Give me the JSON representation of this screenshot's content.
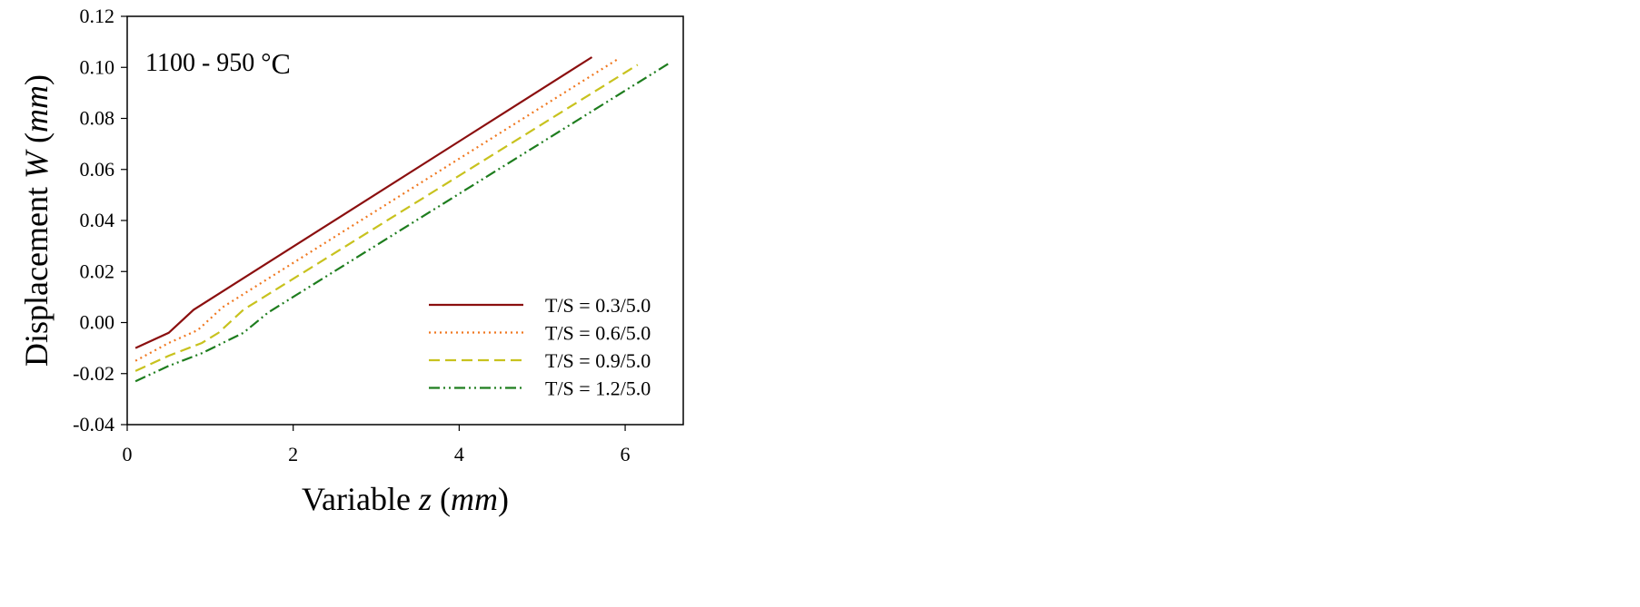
{
  "chart_data": {
    "type": "line",
    "annotation": {
      "main": "1100 - 950 °",
      "unit": "C"
    },
    "xlabel": {
      "main": "Variable ",
      "var": "z",
      "open": " (",
      "unit": "mm",
      "close": ")"
    },
    "ylabel": {
      "main": "Displacement ",
      "var": "W",
      "open": " (",
      "unit": "mm",
      "close": ")"
    },
    "xlim": [
      0,
      6.7
    ],
    "ylim": [
      -0.04,
      0.12
    ],
    "xticks": [
      0,
      2,
      4,
      6
    ],
    "xtick_labels": [
      "0",
      "2",
      "4",
      "6"
    ],
    "yticks": [
      -0.04,
      -0.02,
      0.0,
      0.02,
      0.04,
      0.06,
      0.08,
      0.1,
      0.12
    ],
    "ytick_labels": [
      "-0.04",
      "-0.02",
      "0.00",
      "0.02",
      "0.04",
      "0.06",
      "0.08",
      "0.10",
      "0.12"
    ],
    "grid": false,
    "legend_position": "bottom-right",
    "series": [
      {
        "name": "T/S = 0.3/5.0",
        "color": "#8b0f0f",
        "dash": "solid",
        "x": [
          0.1,
          0.5,
          0.8,
          5.6
        ],
        "y": [
          -0.01,
          -0.004,
          0.005,
          0.104
        ]
      },
      {
        "name": "T/S = 0.6/5.0",
        "color": "#f07820",
        "dash": "dotted",
        "x": [
          0.1,
          0.5,
          0.85,
          1.15,
          5.9
        ],
        "y": [
          -0.015,
          -0.008,
          -0.003,
          0.006,
          0.103
        ]
      },
      {
        "name": "T/S = 0.9/5.0",
        "color": "#c8c21e",
        "dash": "dashed",
        "x": [
          0.1,
          0.5,
          0.9,
          1.1,
          1.4,
          6.15
        ],
        "y": [
          -0.019,
          -0.013,
          -0.008,
          -0.004,
          0.005,
          0.101
        ]
      },
      {
        "name": "T/S = 1.2/5.0",
        "color": "#1e7d1e",
        "dash": "dashdotdot",
        "x": [
          0.1,
          0.5,
          0.9,
          1.4,
          1.7,
          6.55
        ],
        "y": [
          -0.023,
          -0.017,
          -0.012,
          -0.004,
          0.004,
          0.102
        ]
      }
    ]
  }
}
